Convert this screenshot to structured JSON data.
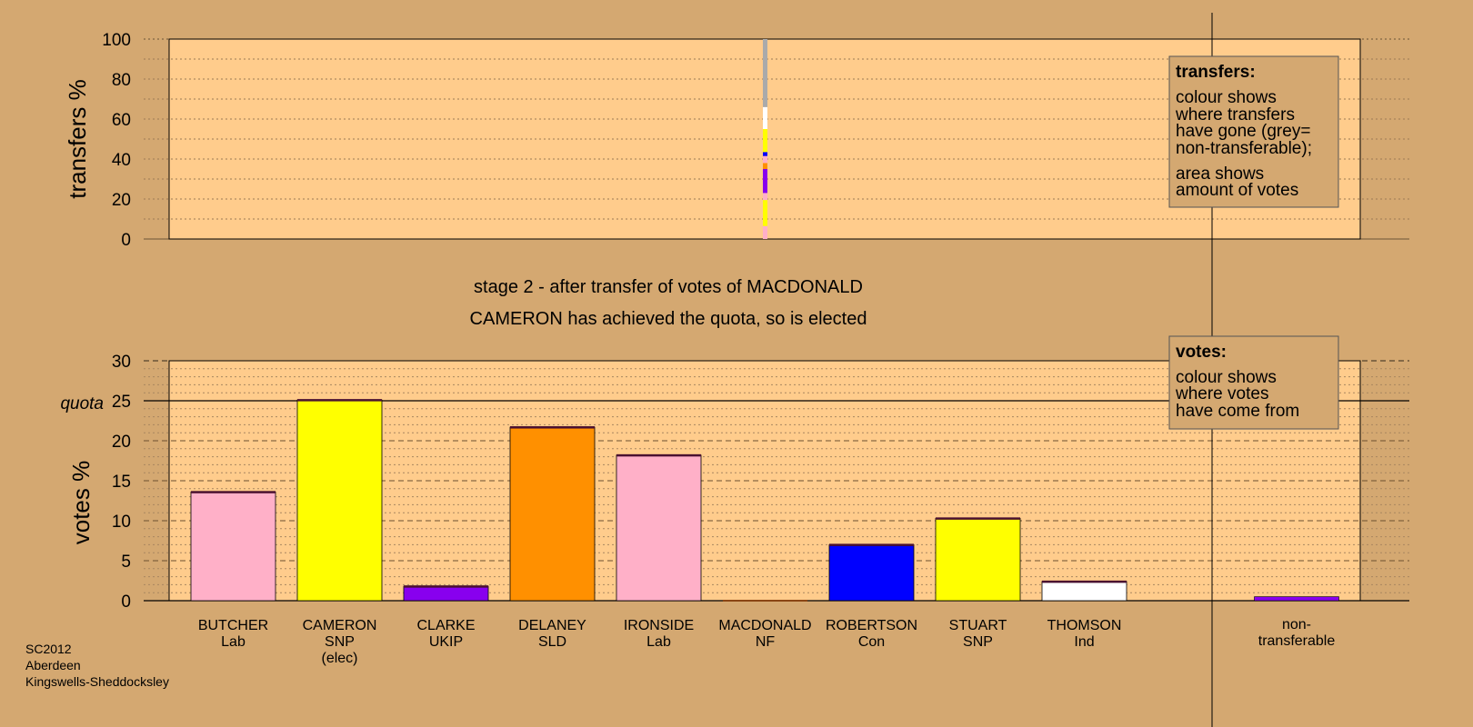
{
  "footer": {
    "line1": "SC2012",
    "line2": "Aberdeen",
    "line3": "Kingswells-Sheddocksley"
  },
  "stage": {
    "line1": "stage 2 - after transfer of votes of MACDONALD",
    "line2": "CAMERON has achieved the quota, so is elected"
  },
  "legend_transfers": {
    "title": "transfers:",
    "line1": "colour shows",
    "line2": "where transfers",
    "line3": "have gone (grey=",
    "line4": "non-transferable);",
    "line5": "area shows",
    "line6": "amount of votes"
  },
  "legend_votes": {
    "title": "votes:",
    "line1": "colour shows",
    "line2": "where votes",
    "line3": "have come from"
  },
  "chart_data": [
    {
      "type": "bar",
      "title": "",
      "ylabel": "transfers %",
      "ylim": [
        0,
        100
      ],
      "yticks": [
        "0",
        "20",
        "40",
        "60",
        "80",
        "100"
      ],
      "transfer_column": {
        "from": "MACDONALD",
        "segments": [
          {
            "to": "BUTCHER",
            "pct": 6.5,
            "color": "#ffb0c8"
          },
          {
            "to": "CAMERON",
            "pct": 13.0,
            "color": "#ffff00"
          },
          {
            "to": "CLARKE",
            "pct": 3.5,
            "color": "#ffb0c8"
          },
          {
            "to": "CLARKE",
            "pct": 12.0,
            "color": "#8800ee"
          },
          {
            "to": "DELANEY",
            "pct": 3.0,
            "color": "#ff9000"
          },
          {
            "to": "IRONSIDE",
            "pct": 3.5,
            "color": "#ffb0c8"
          },
          {
            "to": "ROBERTSON",
            "pct": 2.0,
            "color": "#0000ff"
          },
          {
            "to": "STUART",
            "pct": 11.5,
            "color": "#ffff00"
          },
          {
            "to": "THOMSON",
            "pct": 11.0,
            "color": "#ffffff"
          },
          {
            "to": "non-transferable",
            "pct": 34.0,
            "color": "#aaaaaa"
          }
        ]
      }
    },
    {
      "type": "bar",
      "title": "",
      "ylabel": "votes %",
      "ylim": [
        0,
        30
      ],
      "yticks": [
        "0",
        "5",
        "10",
        "15",
        "20",
        "25",
        "30"
      ],
      "quota": 25,
      "quota_label": "quota",
      "candidates": [
        {
          "name": "BUTCHER",
          "party": "Lab",
          "note": "",
          "value": 13.6,
          "color": "#ffb0c8"
        },
        {
          "name": "CAMERON",
          "party": "SNP",
          "note": "(elec)",
          "value": 25.1,
          "color": "#ffff00"
        },
        {
          "name": "CLARKE",
          "party": "UKIP",
          "note": "",
          "value": 1.8,
          "color": "#8800ee"
        },
        {
          "name": "DELANEY",
          "party": "SLD",
          "note": "",
          "value": 21.7,
          "color": "#ff9000"
        },
        {
          "name": "IRONSIDE",
          "party": "Lab",
          "note": "",
          "value": 18.2,
          "color": "#ffb0c8"
        },
        {
          "name": "MACDONALD",
          "party": "NF",
          "note": "",
          "value": 0,
          "color": "#8b4513"
        },
        {
          "name": "ROBERTSON",
          "party": "Con",
          "note": "",
          "value": 7.0,
          "color": "#0000ff"
        },
        {
          "name": "STUART",
          "party": "SNP",
          "note": "",
          "value": 10.3,
          "color": "#ffff00"
        },
        {
          "name": "THOMSON",
          "party": "Ind",
          "note": "",
          "value": 2.4,
          "color": "#ffffff"
        }
      ],
      "non_transferable": {
        "label1": "non-",
        "label2": "transferable",
        "value": 0.5,
        "color": "#8800ee"
      }
    }
  ]
}
